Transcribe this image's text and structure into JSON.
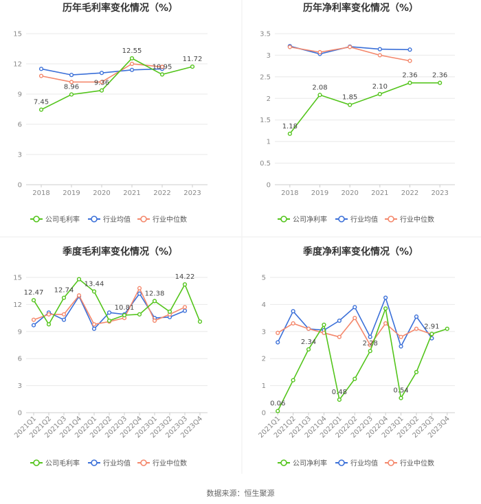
{
  "source": "数据来源：恒生聚源",
  "colors": {
    "company": "#52c41a",
    "avg": "#3a6fd8",
    "median": "#f4876b"
  },
  "chart_data": [
    {
      "type": "line",
      "title": "历年毛利率变化情况（%）",
      "categories": [
        "2018",
        "2019",
        "2020",
        "2021",
        "2022",
        "2023"
      ],
      "ylim": [
        0,
        15
      ],
      "yticks": [
        0,
        3,
        6,
        9,
        12,
        15
      ],
      "series": [
        {
          "name": "公司毛利率",
          "key": "company",
          "values": [
            7.45,
            8.96,
            9.36,
            12.55,
            10.95,
            11.72
          ]
        },
        {
          "name": "行业均值",
          "key": "avg",
          "values": [
            11.5,
            10.9,
            11.1,
            11.4,
            11.5,
            null
          ]
        },
        {
          "name": "行业中位数",
          "key": "median",
          "values": [
            10.8,
            10.2,
            10.2,
            12.0,
            11.7,
            null
          ]
        }
      ],
      "data_labels": [
        {
          "i": 0,
          "text": "7.45"
        },
        {
          "i": 1,
          "text": "8.96"
        },
        {
          "i": 2,
          "text": "9.36"
        },
        {
          "i": 3,
          "text": "12.55"
        },
        {
          "i": 4,
          "text": "10.95"
        },
        {
          "i": 5,
          "text": "11.72"
        }
      ]
    },
    {
      "type": "line",
      "title": "历年净利率变化情况（%）",
      "categories": [
        "2018",
        "2019",
        "2020",
        "2021",
        "2022",
        "2023"
      ],
      "ylim": [
        0,
        3.5
      ],
      "yticks": [
        0,
        0.5,
        1,
        1.5,
        2,
        2.5,
        3,
        3.5
      ],
      "series": [
        {
          "name": "公司净利率",
          "key": "company",
          "values": [
            1.18,
            2.08,
            1.85,
            2.1,
            2.36,
            2.36
          ]
        },
        {
          "name": "行业均值",
          "key": "avg",
          "values": [
            3.21,
            3.03,
            3.2,
            3.14,
            3.13,
            null
          ]
        },
        {
          "name": "行业中位数",
          "key": "median",
          "values": [
            3.19,
            3.07,
            3.19,
            3.0,
            2.87,
            null
          ]
        }
      ],
      "data_labels": [
        {
          "i": 0,
          "text": "1.18"
        },
        {
          "i": 1,
          "text": "2.08"
        },
        {
          "i": 2,
          "text": "1.85"
        },
        {
          "i": 3,
          "text": "2.10"
        },
        {
          "i": 4,
          "text": "2.36"
        },
        {
          "i": 5,
          "text": "2.36"
        }
      ]
    },
    {
      "type": "line",
      "title": "季度毛利率变化情况（%）",
      "categories": [
        "2021Q1",
        "2021Q2",
        "2021Q3",
        "2021Q4",
        "2022Q1",
        "2022Q2",
        "2022Q3",
        "2022Q4",
        "2023Q1",
        "2023Q2",
        "2023Q3",
        "2023Q4"
      ],
      "ylim": [
        0,
        15
      ],
      "yticks": [
        0,
        3,
        6,
        9,
        12,
        15
      ],
      "series": [
        {
          "name": "公司毛利率",
          "key": "company",
          "values": [
            12.47,
            9.8,
            12.74,
            14.8,
            13.44,
            10.2,
            10.81,
            10.9,
            12.38,
            11.2,
            14.22,
            10.1
          ]
        },
        {
          "name": "行业均值",
          "key": "avg",
          "values": [
            9.7,
            11.1,
            10.3,
            12.9,
            9.3,
            11.1,
            10.9,
            13.2,
            10.5,
            10.6,
            11.3,
            null
          ]
        },
        {
          "name": "行业中位数",
          "key": "median",
          "values": [
            10.3,
            10.9,
            10.9,
            13.0,
            9.8,
            10.1,
            10.5,
            13.8,
            10.2,
            10.9,
            11.7,
            null
          ]
        }
      ],
      "data_labels": [
        {
          "i": 0,
          "text": "12.47"
        },
        {
          "i": 2,
          "text": "12.74"
        },
        {
          "i": 4,
          "text": "13.44"
        },
        {
          "i": 6,
          "text": "10.81"
        },
        {
          "i": 8,
          "text": "12.38"
        },
        {
          "i": 10,
          "text": "14.22"
        }
      ]
    },
    {
      "type": "line",
      "title": "季度净利率变化情况（%）",
      "categories": [
        "2021Q1",
        "2021Q2",
        "2021Q3",
        "2021Q4",
        "2022Q1",
        "2022Q2",
        "2022Q3",
        "2022Q4",
        "2023Q1",
        "2023Q2",
        "2023Q3",
        "2023Q4"
      ],
      "ylim": [
        0,
        5
      ],
      "yticks": [
        0,
        1,
        2,
        3,
        4,
        5
      ],
      "series": [
        {
          "name": "公司净利率",
          "key": "company",
          "values": [
            0.06,
            1.2,
            2.34,
            3.25,
            0.48,
            1.25,
            2.28,
            3.85,
            0.54,
            1.5,
            2.91,
            3.1
          ]
        },
        {
          "name": "行业均值",
          "key": "avg",
          "values": [
            2.6,
            3.75,
            3.1,
            3.05,
            3.4,
            3.9,
            2.8,
            4.25,
            2.45,
            3.55,
            2.75,
            null
          ]
        },
        {
          "name": "行业中位数",
          "key": "median",
          "values": [
            2.95,
            3.3,
            3.1,
            2.95,
            2.8,
            3.5,
            2.5,
            3.3,
            2.8,
            3.1,
            2.9,
            null
          ]
        }
      ],
      "data_labels": [
        {
          "i": 0,
          "text": "0.06"
        },
        {
          "i": 2,
          "text": "2.34"
        },
        {
          "i": 4,
          "text": "0.48"
        },
        {
          "i": 6,
          "text": "2.28"
        },
        {
          "i": 8,
          "text": "0.54"
        },
        {
          "i": 10,
          "text": "2.91"
        }
      ]
    }
  ]
}
